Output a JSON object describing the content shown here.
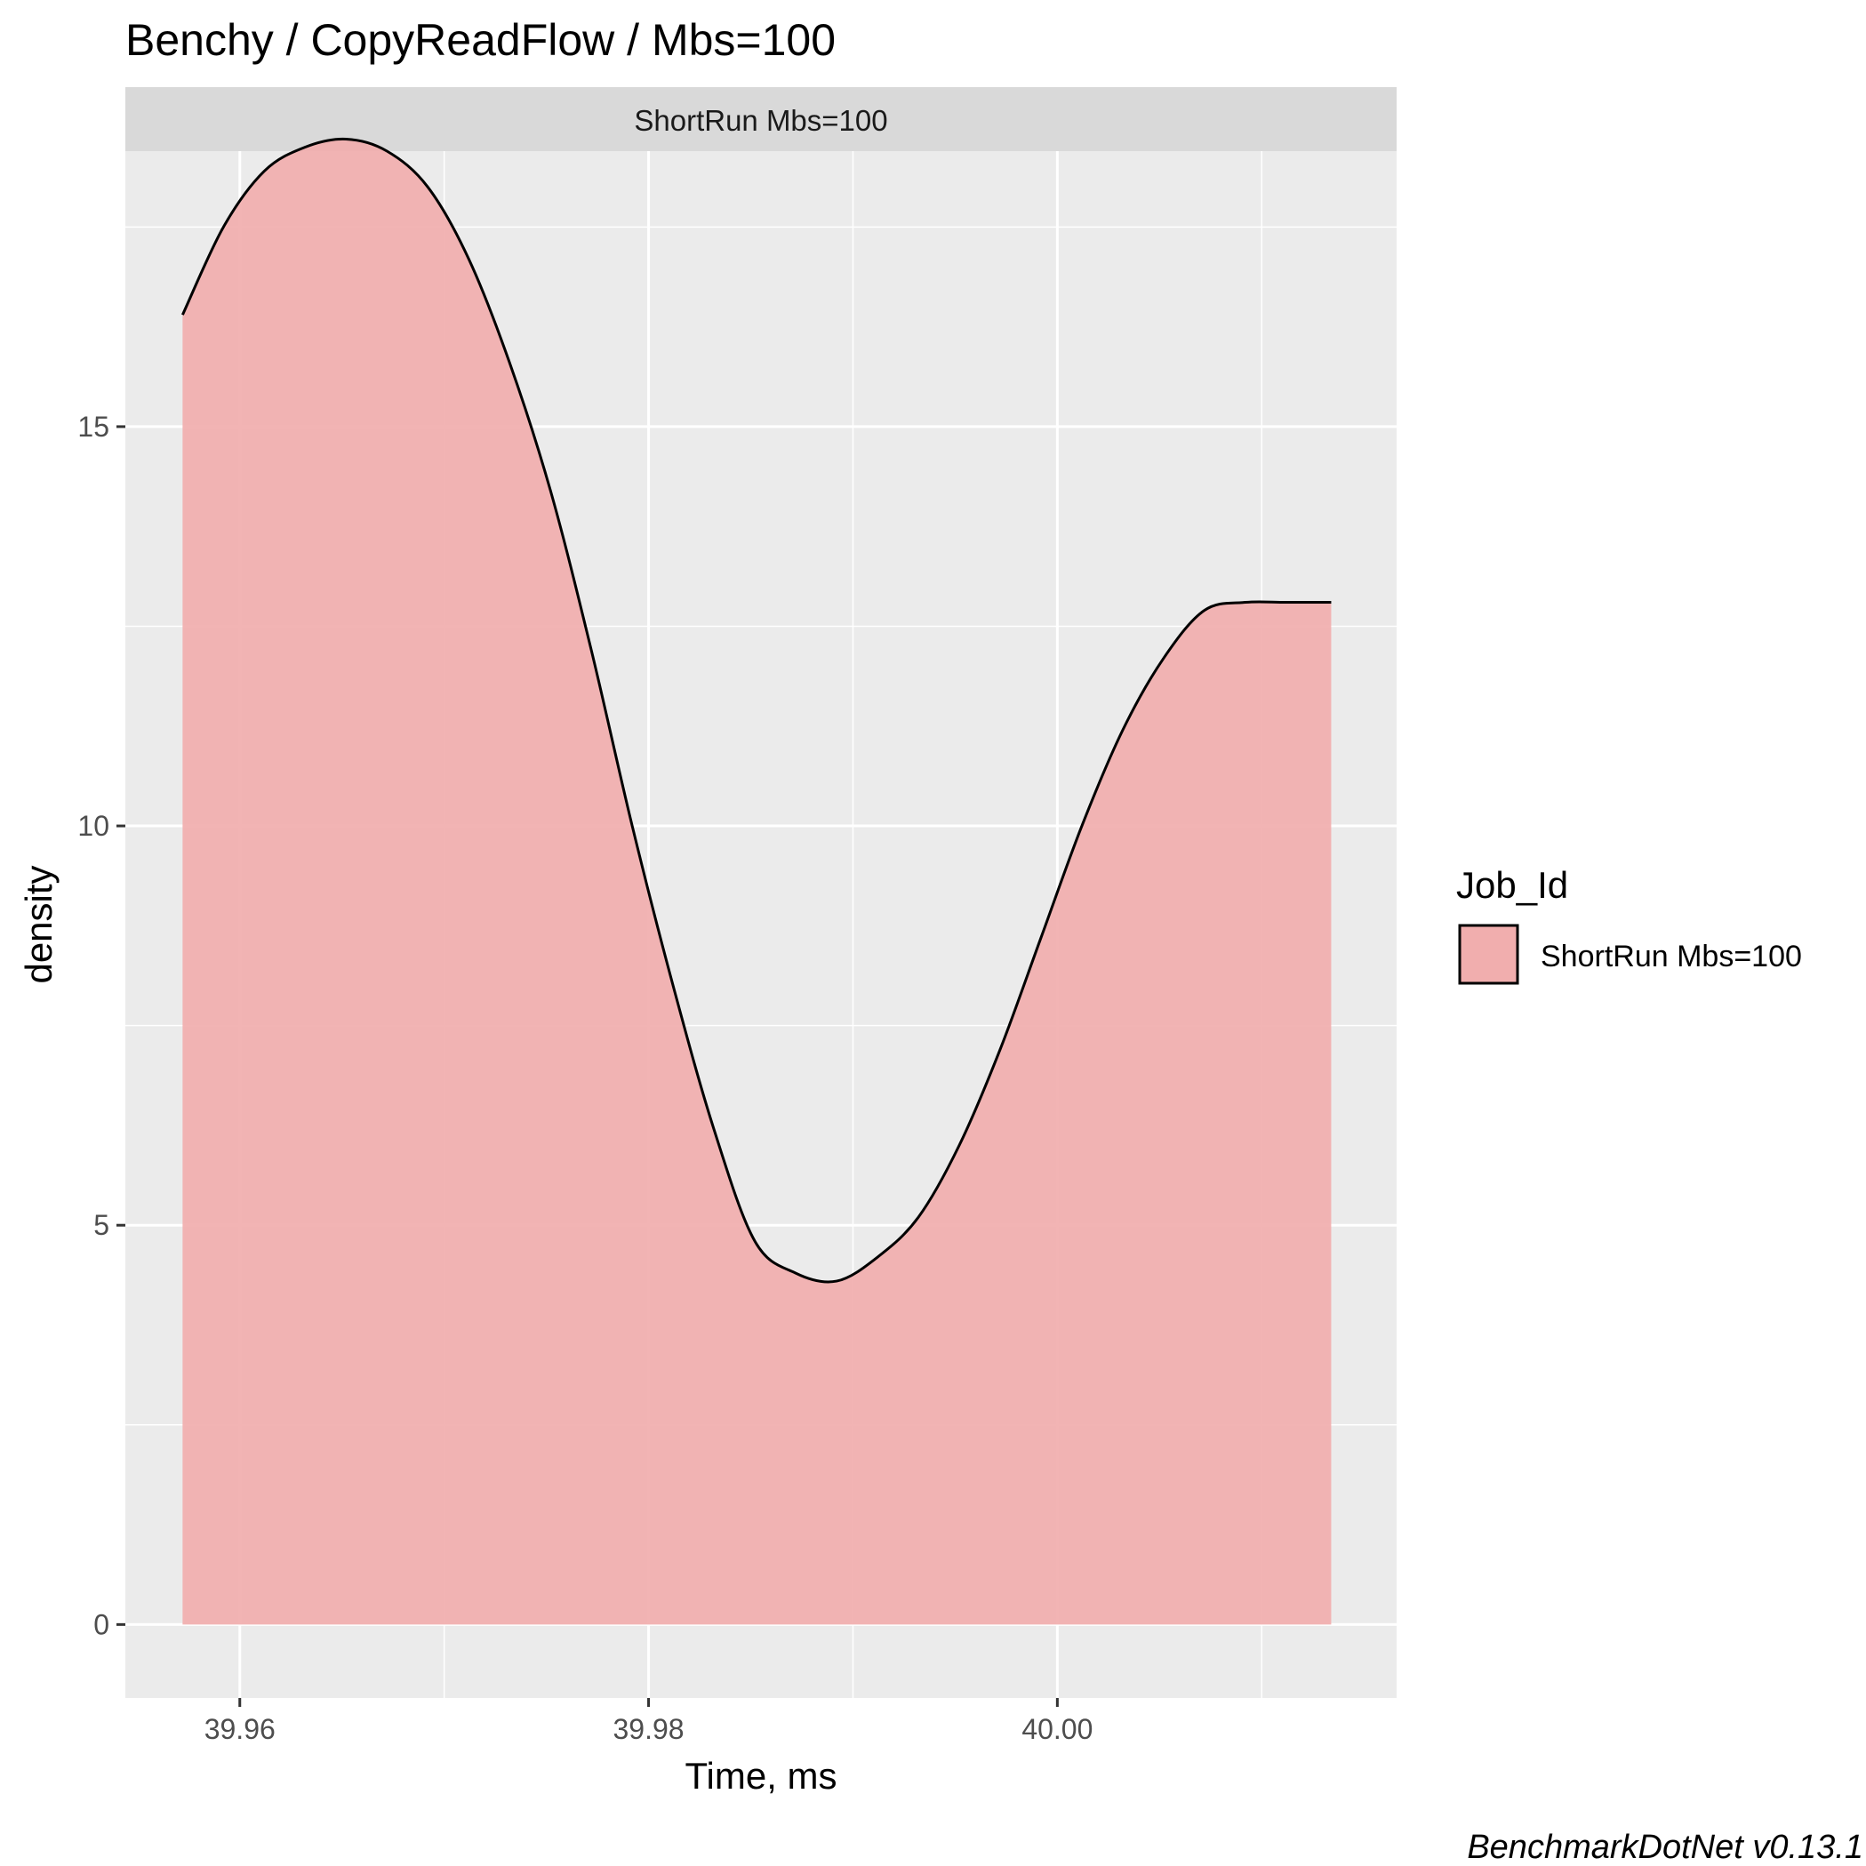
{
  "chart_data": {
    "type": "area",
    "title": "Benchy / CopyReadFlow / Mbs=100",
    "facet_label": "ShortRun Mbs=100",
    "xlabel": "Time, ms",
    "ylabel": "density",
    "xlim": [
      39.9544,
      40.0166
    ],
    "ylim": [
      -0.92,
      18.45
    ],
    "x_ticks": [
      39.96,
      39.98,
      40.0
    ],
    "x_tick_labels": [
      "39.96",
      "39.98",
      "40.00"
    ],
    "y_ticks": [
      0,
      5,
      10,
      15
    ],
    "y_tick_labels": [
      "0",
      "5",
      "10",
      "15"
    ],
    "grid": true,
    "legend": {
      "title": "Job_Id",
      "position": "right",
      "entries": [
        {
          "label": "ShortRun Mbs=100",
          "color": "#f1aeae"
        }
      ]
    },
    "caption": "BenchmarkDotNet v0.13.1",
    "series": [
      {
        "fill": "#f1aeae",
        "line_color": "#000000",
        "x": [
          39.9572,
          39.9592,
          39.9612,
          39.9632,
          39.9652,
          39.9672,
          39.9692,
          39.9712,
          39.9732,
          39.9752,
          39.9772,
          39.9792,
          39.9812,
          39.9832,
          39.9852,
          39.9872,
          39.9892,
          39.9912,
          39.9932,
          39.9952,
          39.9972,
          39.9992,
          40.0012,
          40.0032,
          40.0052,
          40.0072,
          40.0092,
          40.0112,
          40.0134
        ],
        "y": [
          16.4,
          17.5,
          18.2,
          18.5,
          18.6,
          18.45,
          18.0,
          17.1,
          15.8,
          14.2,
          12.2,
          10.0,
          8.0,
          6.2,
          4.8,
          4.4,
          4.3,
          4.6,
          5.1,
          6.0,
          7.2,
          8.6,
          10.0,
          11.2,
          12.1,
          12.7,
          12.8,
          12.8,
          12.8
        ]
      }
    ]
  }
}
